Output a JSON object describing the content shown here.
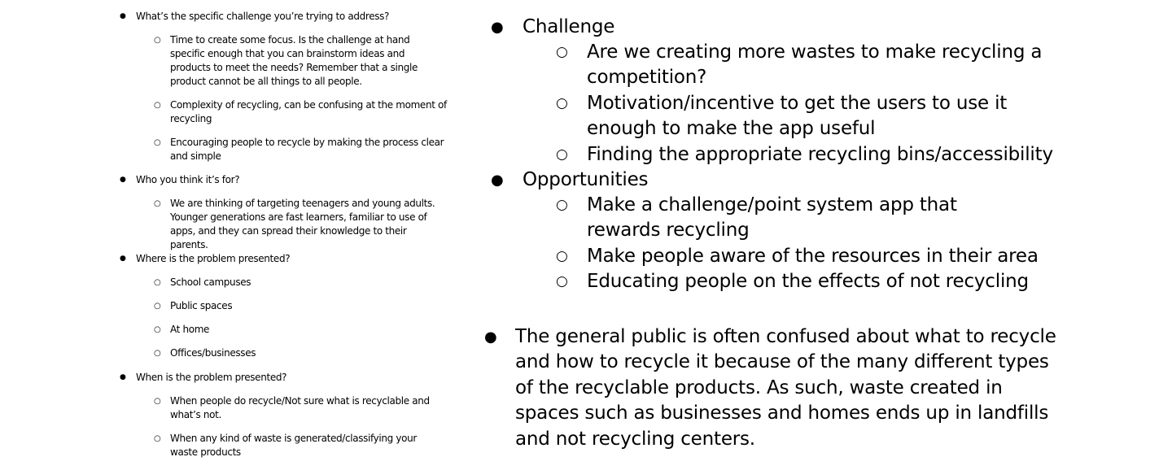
{
  "left": {
    "sections": [
      {
        "question": "What’s the specific challenge you’re trying to address?",
        "answers": [
          "Time to create some focus. Is the challenge at hand specific enough that you can brainstorm ideas and products to meet the needs? Remember that a single product cannot be all things to all people.",
          "Complexity of recycling, can be confusing at the moment of recycling",
          "Encouraging people to recycle by making the process clear and simple"
        ]
      },
      {
        "question": "Who you think it’s for?",
        "answers": [
          "We are thinking of targeting teenagers and young adults. Younger generations are fast learners, familiar to use of apps, and they can spread their knowledge to their parents."
        ]
      },
      {
        "question": "Where is the problem presented?",
        "answers": [
          "School campuses",
          "Public spaces",
          "At home",
          "Offices/businesses"
        ]
      },
      {
        "question": "When is the problem presented?",
        "answers": [
          "When people do recycle/Not sure what is recyclable and what’s not.",
          "When any kind of waste is generated/classifying your waste products"
        ]
      }
    ]
  },
  "right": {
    "groups": [
      {
        "heading": "Challenge",
        "items": [
          "Are we creating more wastes to make recycling a competition?",
          "Motivation/incentive to get the users to use it enough to make the app useful",
          "Finding the appropriate recycling bins/accessibility"
        ]
      },
      {
        "heading": "Opportunities",
        "items": [
          "Make a challenge/point system app that rewards recycling",
          "Make people aware of the resources in their area",
          "Educating people on the effects of not recycling"
        ]
      }
    ],
    "summary": "The general public is often confused about what to recycle and how to recycle it because of the many different types of the recyclable products. As such, waste created in spaces such as businesses and homes ends up in landfills and not recycling centers."
  },
  "glyphs": {
    "main_bullet": "●",
    "sub_bullet": "○"
  }
}
